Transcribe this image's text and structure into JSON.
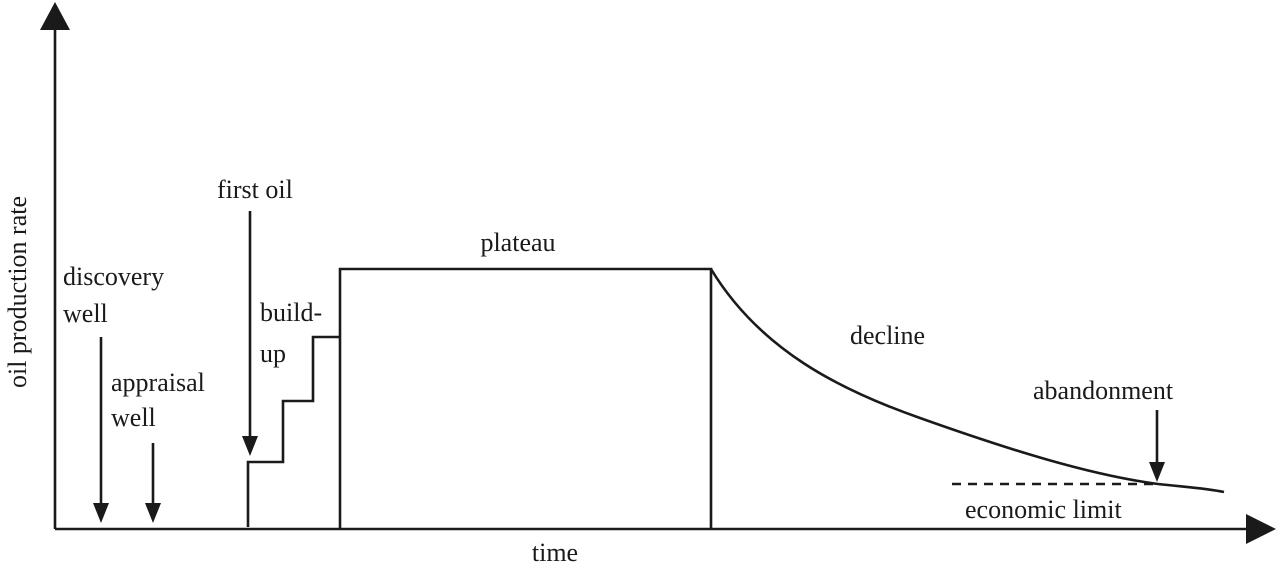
{
  "axes": {
    "x_label": "time",
    "y_label": "oil production rate"
  },
  "labels": {
    "discovery_line1": "discovery",
    "discovery_line2": "well",
    "appraisal_line1": "appraisal",
    "appraisal_line2": "well",
    "first_oil": "first oil",
    "buildup_line1": "build-",
    "buildup_line2": "up",
    "plateau": "plateau",
    "decline": "decline",
    "abandonment": "abandonment",
    "economic_limit": "economic limit"
  },
  "colors": {
    "ink": "#1a1a1a",
    "background": "#ffffff"
  }
}
